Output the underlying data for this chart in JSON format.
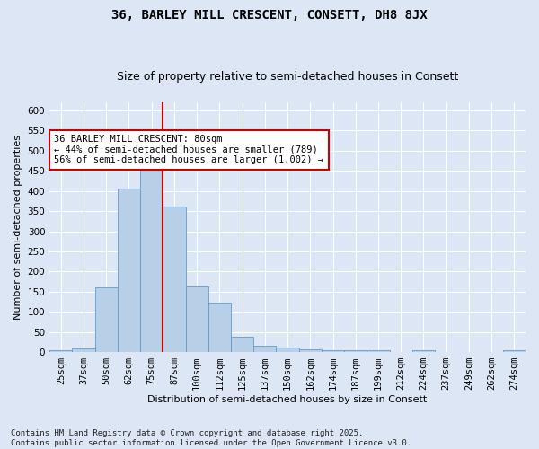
{
  "title": "36, BARLEY MILL CRESCENT, CONSETT, DH8 8JX",
  "subtitle": "Size of property relative to semi-detached houses in Consett",
  "xlabel": "Distribution of semi-detached houses by size in Consett",
  "ylabel": "Number of semi-detached properties",
  "bin_labels": [
    "25sqm",
    "37sqm",
    "50sqm",
    "62sqm",
    "75sqm",
    "87sqm",
    "100sqm",
    "112sqm",
    "125sqm",
    "137sqm",
    "150sqm",
    "162sqm",
    "174sqm",
    "187sqm",
    "199sqm",
    "212sqm",
    "224sqm",
    "237sqm",
    "249sqm",
    "262sqm",
    "274sqm"
  ],
  "bar_heights": [
    5,
    8,
    160,
    405,
    487,
    362,
    163,
    123,
    37,
    16,
    12,
    7,
    5,
    4,
    5,
    0,
    5,
    0,
    0,
    0,
    4
  ],
  "bar_color": "#b8cfe8",
  "bar_edge_color": "#6699cc",
  "vline_color": "#cc0000",
  "annotation_text": "36 BARLEY MILL CRESCENT: 80sqm\n← 44% of semi-detached houses are smaller (789)\n56% of semi-detached houses are larger (1,002) →",
  "annotation_box_color": "white",
  "annotation_box_edge": "#cc0000",
  "footer_text": "Contains HM Land Registry data © Crown copyright and database right 2025.\nContains public sector information licensed under the Open Government Licence v3.0.",
  "ylim": [
    0,
    620
  ],
  "background_color": "#dce6f5",
  "plot_background": "#dce6f5",
  "grid_color": "#ffffff",
  "title_fontsize": 10,
  "subtitle_fontsize": 9,
  "axis_label_fontsize": 8,
  "tick_fontsize": 7.5,
  "footer_fontsize": 6.5,
  "annotation_fontsize": 7.5,
  "vline_pos": 4.5
}
